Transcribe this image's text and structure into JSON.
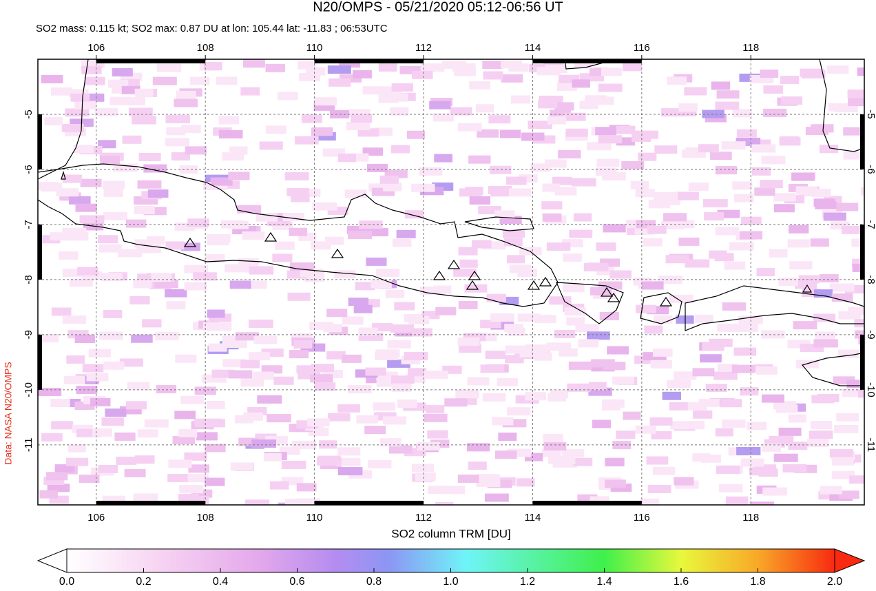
{
  "title": "N20/OMPS - 05/21/2020 05:12-06:56 UT",
  "subtitle": "SO2 mass: 0.115 kt; SO2 max: 0.87 DU at lon: 105.44 lat: -11.83 ; 06:53UTC",
  "credit": "Data: NASA N20/OMPS",
  "map": {
    "xlim": [
      104.93,
      120.08
    ],
    "ylim": [
      -12.09,
      -4.0
    ],
    "xticks": [
      106,
      108,
      110,
      112,
      114,
      116,
      118
    ],
    "yticks": [
      -5,
      -6,
      -7,
      -8,
      -9,
      -10,
      -11
    ],
    "grid": true
  },
  "colorbar": {
    "label": "SO2 column TRM [DU]",
    "lim": [
      0,
      2
    ],
    "ticks": [
      {
        "value": 0,
        "label": "0.0"
      },
      0.2,
      0.4,
      0.6,
      0.8,
      {
        "value": 1,
        "label": "1.0"
      },
      1.2,
      1.4,
      1.6,
      1.8,
      {
        "value": 2,
        "label": "2.0"
      }
    ]
  }
}
